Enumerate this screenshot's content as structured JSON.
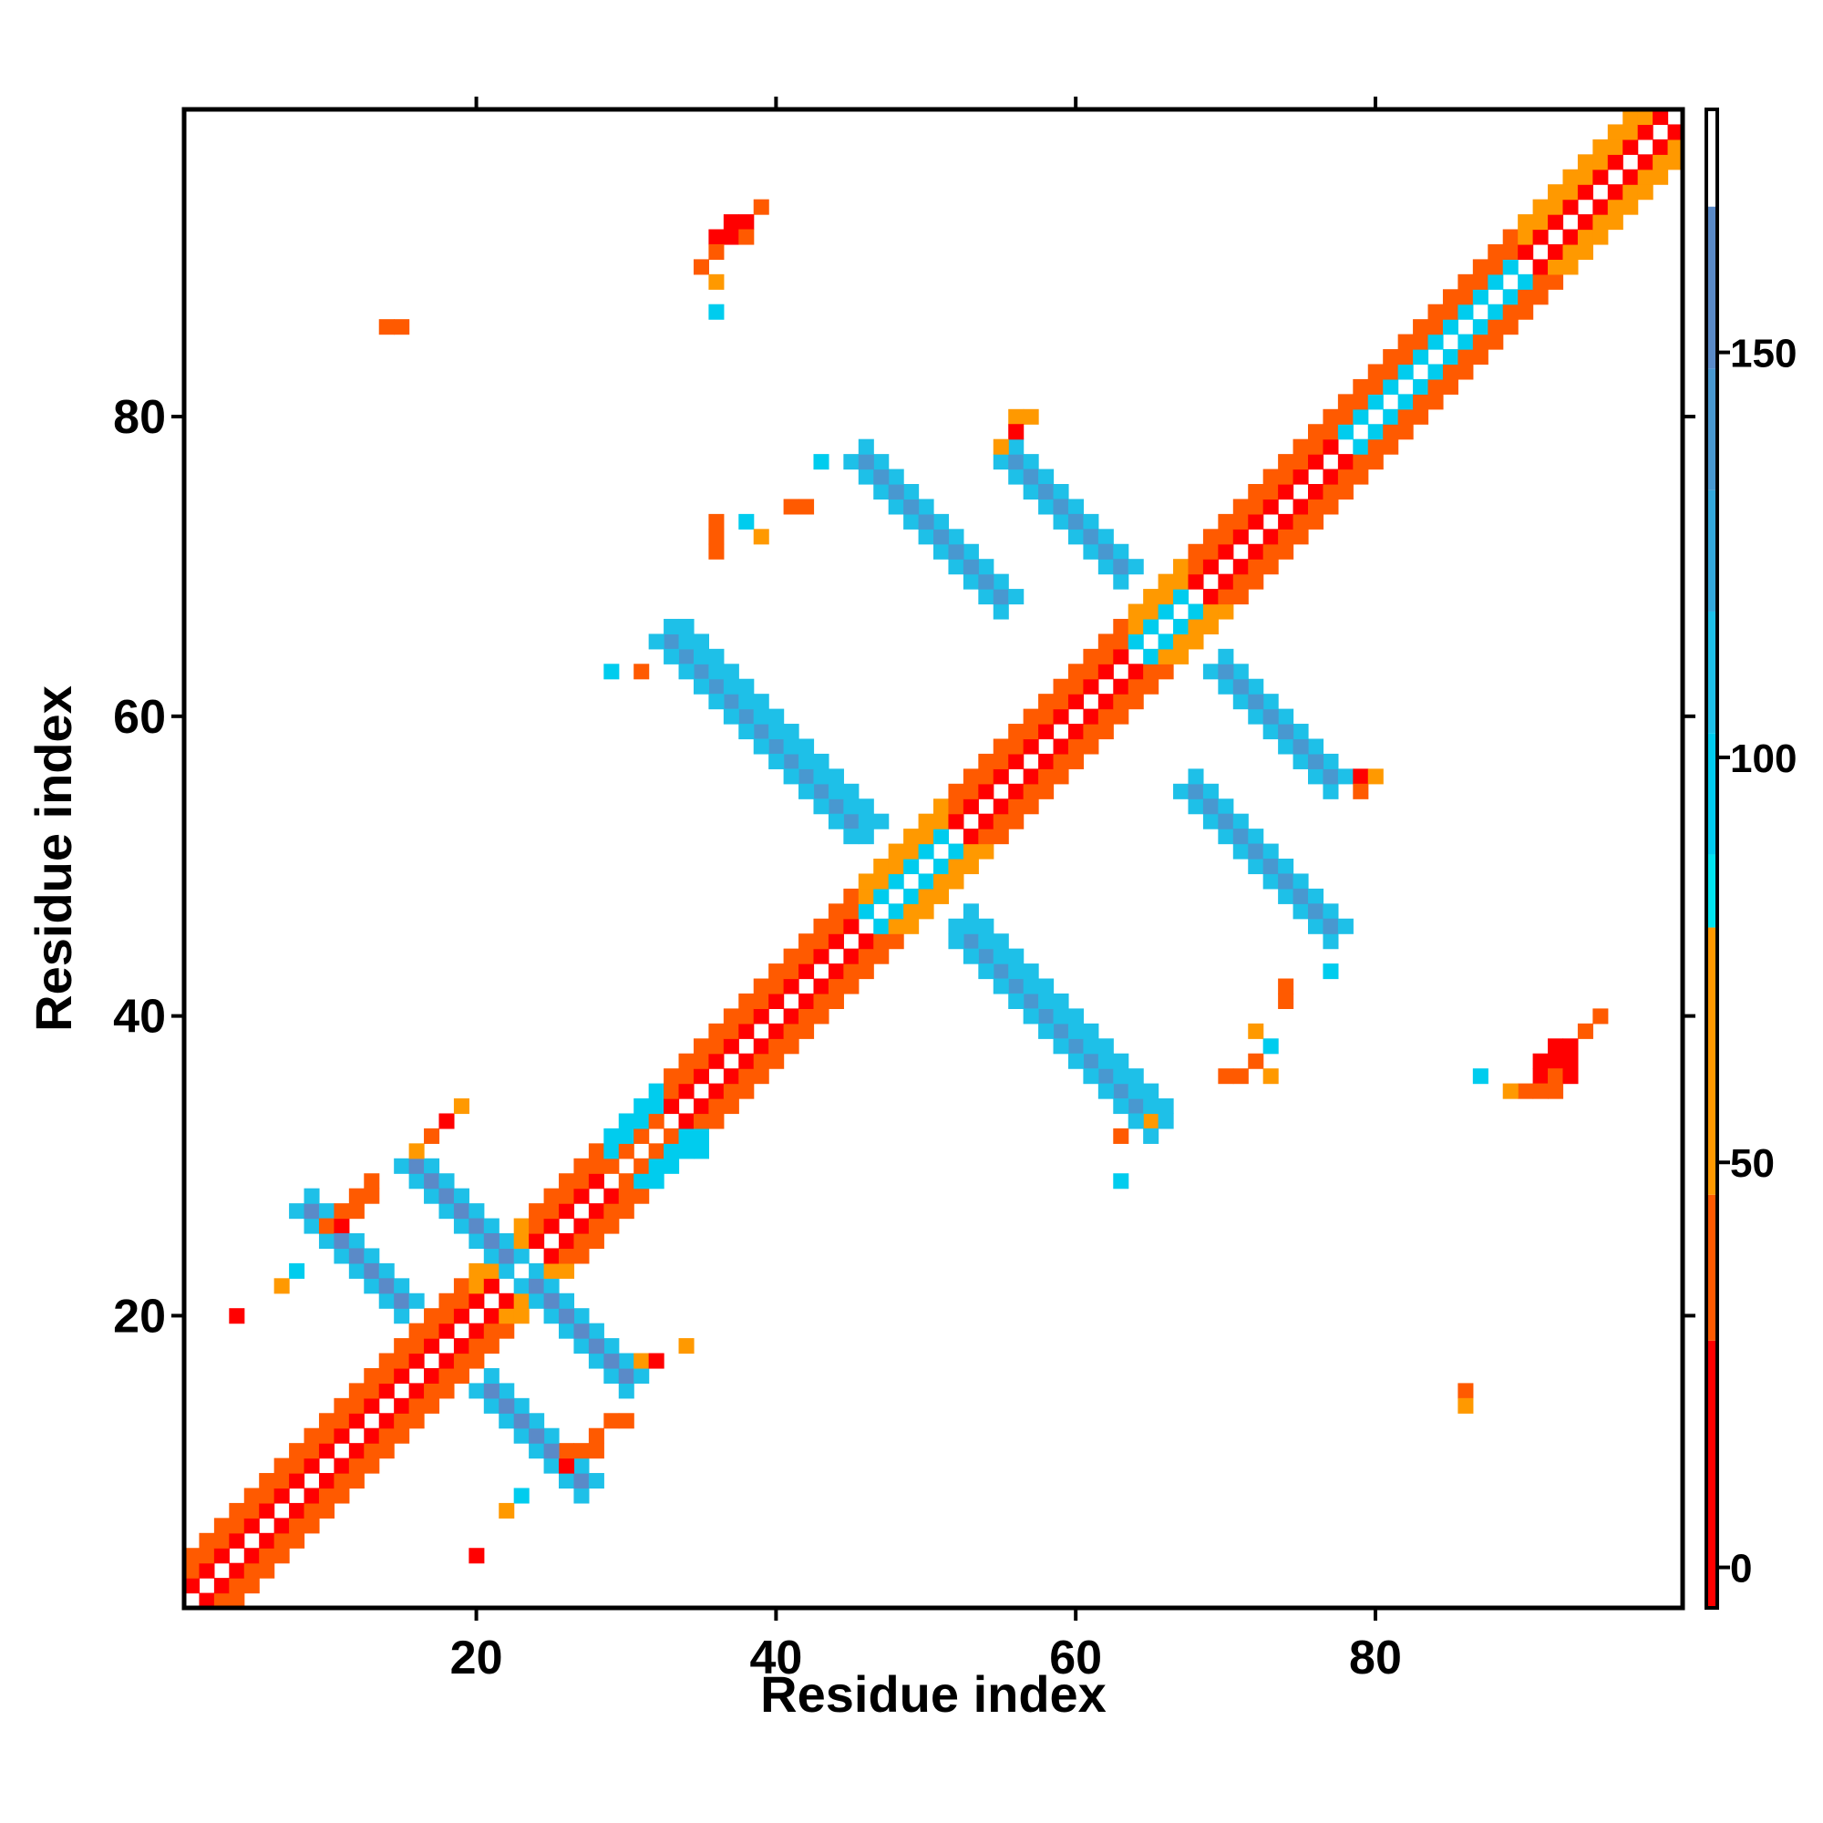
{
  "chart_data": {
    "type": "heatmap",
    "title": "",
    "xlabel": "Residue index",
    "ylabel": "Residue index",
    "n_residues": 100,
    "xlim": [
      0.5,
      100.5
    ],
    "ylim": [
      0.5,
      100.5
    ],
    "x_ticks": [
      20,
      40,
      60,
      80
    ],
    "y_ticks": [
      20,
      40,
      60,
      80
    ],
    "colorbar": {
      "range": [
        -5,
        180
      ],
      "ticks": [
        0,
        50,
        100,
        150
      ],
      "stops": [
        {
          "from": -5,
          "to": 28,
          "color": "#ff0000"
        },
        {
          "from": 28,
          "to": 46,
          "color": "#ff5a00"
        },
        {
          "from": 46,
          "to": 79,
          "color": "#ff9900"
        },
        {
          "from": 79,
          "to": 88,
          "color": "#00e5ee"
        },
        {
          "from": 88,
          "to": 103,
          "color": "#00ccee"
        },
        {
          "from": 103,
          "to": 118,
          "color": "#1ec0e8"
        },
        {
          "from": 118,
          "to": 133,
          "color": "#33a8dc"
        },
        {
          "from": 133,
          "to": 148,
          "color": "#4898d0"
        },
        {
          "from": 148,
          "to": 168,
          "color": "#5a8ac8"
        },
        {
          "from": 168,
          "to": 180,
          "color": "#ffffff"
        }
      ]
    },
    "value_colors": {
      "red": "#ff0000",
      "red_orange": "#ff5a00",
      "orange": "#ff9900",
      "cyan": "#00e5ee",
      "light_blue": "#24c6e6",
      "steel_blue": "#4b8fcb"
    },
    "regions": {
      "diagonal_bands": [
        {
          "from": 1,
          "to": 14,
          "values": [
            10,
            40
          ]
        },
        {
          "from": 14,
          "to": 20,
          "values": [
            10,
            30
          ]
        },
        {
          "from": 20,
          "to": 24,
          "values": [
            10,
            60
          ]
        },
        {
          "from": 24,
          "to": 29,
          "values": [
            10,
            40
          ]
        },
        {
          "from": 29,
          "to": 33,
          "values": [
            40,
            100
          ]
        },
        {
          "from": 33,
          "to": 46,
          "values": [
            10,
            40
          ]
        },
        {
          "from": 46,
          "to": 52,
          "values": [
            90,
            60
          ]
        },
        {
          "from": 52,
          "to": 64,
          "values": [
            10,
            40
          ]
        },
        {
          "from": 64,
          "to": 68,
          "values": [
            90,
            60
          ]
        },
        {
          "from": 68,
          "to": 78,
          "values": [
            10,
            40
          ]
        },
        {
          "from": 78,
          "to": 90,
          "values": [
            100,
            40
          ]
        },
        {
          "from": 90,
          "to": 100,
          "values": [
            10,
            60
          ]
        }
      ],
      "antiparallel_strands": [
        {
          "x": [
            9,
            15
          ],
          "sum": 36,
          "value": 150
        },
        {
          "x": [
            16,
            22
          ],
          "sum": 46,
          "value": 150
        },
        {
          "x": [
            34,
            46
          ],
          "sum": 99,
          "value": 140
        },
        {
          "x": [
            53,
            65
          ],
          "sum": 98,
          "value": 140
        },
        {
          "x": [
            56,
            63
          ],
          "sum": 133,
          "value": 140
        },
        {
          "x": [
            68,
            77
          ],
          "sum": 123,
          "value": 140
        }
      ],
      "sparse_contacts": [
        {
          "x": 37,
          "y": 93,
          "value": 15
        },
        {
          "x": 38,
          "y": 93,
          "value": 15
        },
        {
          "x": 36,
          "y": 92,
          "value": 15
        },
        {
          "x": 37,
          "y": 92,
          "value": 15
        },
        {
          "x": 38,
          "y": 92,
          "value": 30
        },
        {
          "x": 39,
          "y": 94,
          "value": 40
        },
        {
          "x": 36,
          "y": 91,
          "value": 40
        },
        {
          "x": 35,
          "y": 90,
          "value": 40
        },
        {
          "x": 36,
          "y": 89,
          "value": 60
        },
        {
          "x": 36,
          "y": 87,
          "value": 90
        },
        {
          "x": 14,
          "y": 86,
          "value": 40
        },
        {
          "x": 15,
          "y": 86,
          "value": 30
        },
        {
          "x": 43,
          "y": 77,
          "value": 100
        },
        {
          "x": 41,
          "y": 74,
          "value": 40
        },
        {
          "x": 42,
          "y": 74,
          "value": 40
        },
        {
          "x": 36,
          "y": 73,
          "value": 40
        },
        {
          "x": 36,
          "y": 72,
          "value": 40
        },
        {
          "x": 36,
          "y": 71,
          "value": 40
        },
        {
          "x": 38,
          "y": 73,
          "value": 90
        },
        {
          "x": 39,
          "y": 72,
          "value": 60
        },
        {
          "x": 29,
          "y": 63,
          "value": 90
        },
        {
          "x": 31,
          "y": 63,
          "value": 40
        },
        {
          "x": 56,
          "y": 80,
          "value": 60
        },
        {
          "x": 57,
          "y": 80,
          "value": 60
        },
        {
          "x": 56,
          "y": 79,
          "value": 15
        },
        {
          "x": 55,
          "y": 78,
          "value": 60
        },
        {
          "x": 79,
          "y": 56,
          "value": 15
        },
        {
          "x": 80,
          "y": 56,
          "value": 60
        },
        {
          "x": 79,
          "y": 55,
          "value": 40
        },
        {
          "x": 77,
          "y": 43,
          "value": 90
        },
        {
          "x": 74,
          "y": 42,
          "value": 40
        },
        {
          "x": 74,
          "y": 41,
          "value": 40
        },
        {
          "x": 72,
          "y": 39,
          "value": 60
        },
        {
          "x": 73,
          "y": 38,
          "value": 90
        },
        {
          "x": 72,
          "y": 37,
          "value": 40
        },
        {
          "x": 70,
          "y": 36,
          "value": 40
        },
        {
          "x": 71,
          "y": 36,
          "value": 40
        },
        {
          "x": 73,
          "y": 36,
          "value": 60
        },
        {
          "x": 92,
          "y": 38,
          "value": 15
        },
        {
          "x": 93,
          "y": 38,
          "value": 15
        },
        {
          "x": 91,
          "y": 37,
          "value": 15
        },
        {
          "x": 92,
          "y": 37,
          "value": 15
        },
        {
          "x": 93,
          "y": 37,
          "value": 15
        },
        {
          "x": 91,
          "y": 36,
          "value": 15
        },
        {
          "x": 92,
          "y": 36,
          "value": 30
        },
        {
          "x": 93,
          "y": 36,
          "value": 15
        },
        {
          "x": 90,
          "y": 35,
          "value": 40
        },
        {
          "x": 91,
          "y": 35,
          "value": 40
        },
        {
          "x": 92,
          "y": 35,
          "value": 30
        },
        {
          "x": 94,
          "y": 39,
          "value": 40
        },
        {
          "x": 95,
          "y": 40,
          "value": 40
        },
        {
          "x": 89,
          "y": 35,
          "value": 60
        },
        {
          "x": 87,
          "y": 36,
          "value": 90
        },
        {
          "x": 63,
          "y": 29,
          "value": 90
        },
        {
          "x": 63,
          "y": 32,
          "value": 40
        },
        {
          "x": 65,
          "y": 33,
          "value": 60
        },
        {
          "x": 86,
          "y": 15,
          "value": 40
        },
        {
          "x": 86,
          "y": 14,
          "value": 60
        },
        {
          "x": 4,
          "y": 20,
          "value": 15
        },
        {
          "x": 7,
          "y": 22,
          "value": 60
        },
        {
          "x": 8,
          "y": 23,
          "value": 90
        },
        {
          "x": 17,
          "y": 32,
          "value": 40
        },
        {
          "x": 16,
          "y": 31,
          "value": 60
        },
        {
          "x": 18,
          "y": 33,
          "value": 15
        },
        {
          "x": 19,
          "y": 34,
          "value": 60
        },
        {
          "x": 10,
          "y": 26,
          "value": 40
        },
        {
          "x": 11,
          "y": 26,
          "value": 15
        },
        {
          "x": 11,
          "y": 27,
          "value": 40
        },
        {
          "x": 12,
          "y": 27,
          "value": 40
        },
        {
          "x": 12,
          "y": 28,
          "value": 40
        },
        {
          "x": 13,
          "y": 28,
          "value": 40
        },
        {
          "x": 13,
          "y": 29,
          "value": 40
        },
        {
          "x": 31,
          "y": 17,
          "value": 60
        },
        {
          "x": 32,
          "y": 17,
          "value": 15
        },
        {
          "x": 34,
          "y": 18,
          "value": 60
        },
        {
          "x": 32,
          "y": 31,
          "value": 40
        },
        {
          "x": 34,
          "y": 31,
          "value": 90
        },
        {
          "x": 35,
          "y": 31,
          "value": 90
        },
        {
          "x": 26,
          "y": 11,
          "value": 40
        },
        {
          "x": 27,
          "y": 11,
          "value": 40
        },
        {
          "x": 28,
          "y": 11,
          "value": 40
        },
        {
          "x": 26,
          "y": 10,
          "value": 15
        },
        {
          "x": 28,
          "y": 12,
          "value": 40
        },
        {
          "x": 29,
          "y": 13,
          "value": 40
        },
        {
          "x": 30,
          "y": 13,
          "value": 40
        },
        {
          "x": 20,
          "y": 4,
          "value": 15
        },
        {
          "x": 22,
          "y": 7,
          "value": 60
        },
        {
          "x": 23,
          "y": 8,
          "value": 90
        }
      ]
    }
  }
}
